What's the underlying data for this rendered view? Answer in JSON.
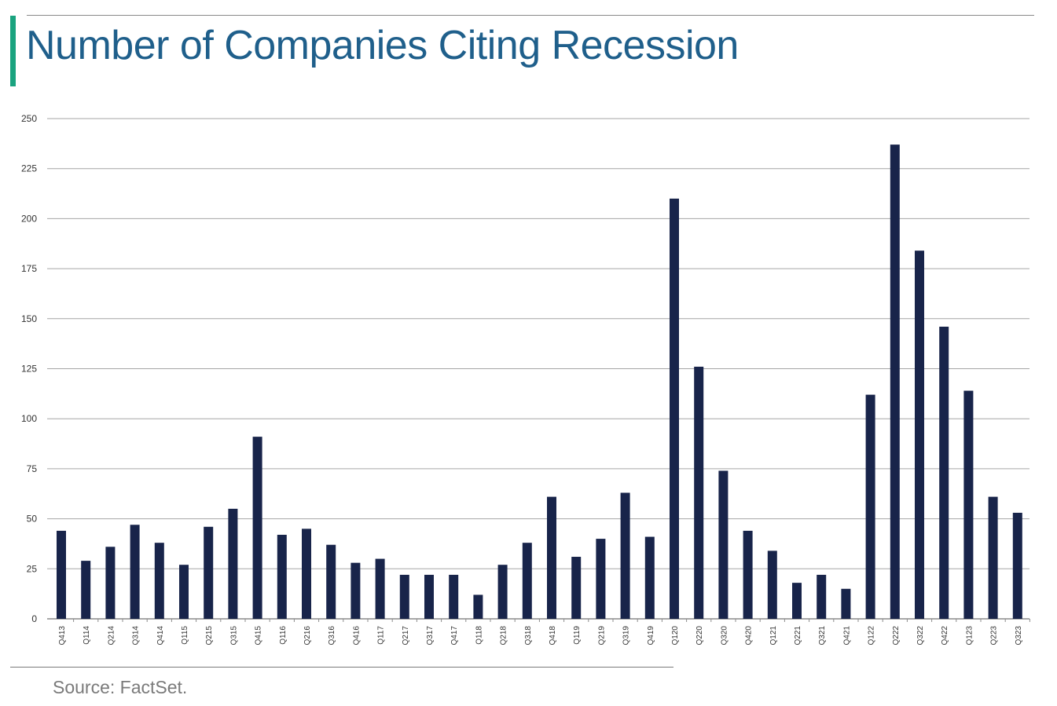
{
  "title": "Number of Companies Citing Recession",
  "source": "Source: FactSet.",
  "colors": {
    "accent": "#1aa37f",
    "title": "#1f5f8b",
    "bar": "#18244a",
    "grid": "#a6a6a6",
    "source": "#7a7a7a"
  },
  "chart_data": {
    "type": "bar",
    "title": "",
    "xlabel": "",
    "ylabel": "",
    "ylim": [
      0,
      250
    ],
    "yticks": [
      0,
      25,
      50,
      75,
      100,
      125,
      150,
      175,
      200,
      225,
      250
    ],
    "grid": true,
    "legend": "none",
    "categories": [
      "Q413",
      "Q114",
      "Q214",
      "Q314",
      "Q414",
      "Q115",
      "Q215",
      "Q315",
      "Q415",
      "Q116",
      "Q216",
      "Q316",
      "Q416",
      "Q117",
      "Q217",
      "Q317",
      "Q417",
      "Q118",
      "Q218",
      "Q318",
      "Q418",
      "Q119",
      "Q219",
      "Q319",
      "Q419",
      "Q120",
      "Q220",
      "Q320",
      "Q420",
      "Q121",
      "Q221",
      "Q321",
      "Q421",
      "Q122",
      "Q222",
      "Q322",
      "Q422",
      "Q123",
      "Q223",
      "Q323"
    ],
    "values": [
      44,
      29,
      36,
      47,
      38,
      27,
      46,
      55,
      91,
      42,
      45,
      37,
      28,
      30,
      22,
      22,
      22,
      12,
      27,
      38,
      61,
      31,
      40,
      63,
      41,
      210,
      126,
      74,
      44,
      34,
      18,
      22,
      15,
      112,
      237,
      184,
      146,
      114,
      61,
      53
    ]
  }
}
